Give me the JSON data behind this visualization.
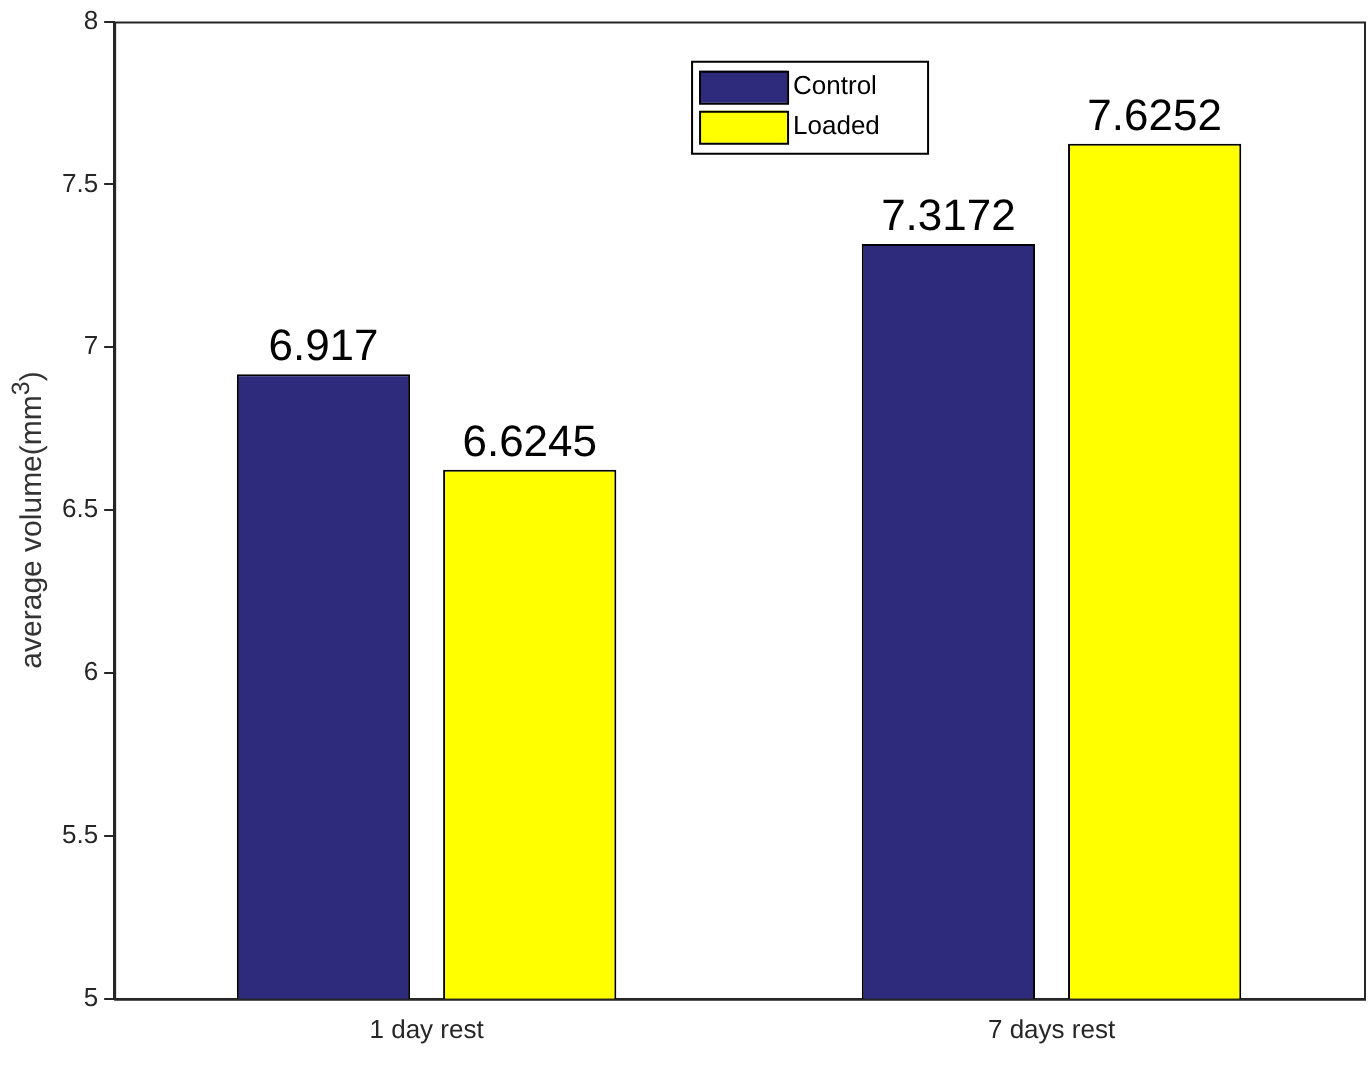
{
  "chart_data": {
    "type": "bar",
    "ylabel": "average volume(mm$^{3}$)",
    "categories": [
      "1 day rest",
      "7 days rest"
    ],
    "series": [
      {
        "name": "Control",
        "color": "#2e2a7c",
        "values": [
          6.917,
          7.3172
        ]
      },
      {
        "name": "Loaded",
        "color": "#ffff00",
        "values": [
          6.6245,
          7.6252
        ]
      }
    ],
    "ylim": [
      5,
      8
    ],
    "yticks": [
      5,
      5.5,
      6,
      6.5,
      7,
      7.5,
      8
    ],
    "data_labels": true,
    "legend": "top",
    "grid": false
  }
}
